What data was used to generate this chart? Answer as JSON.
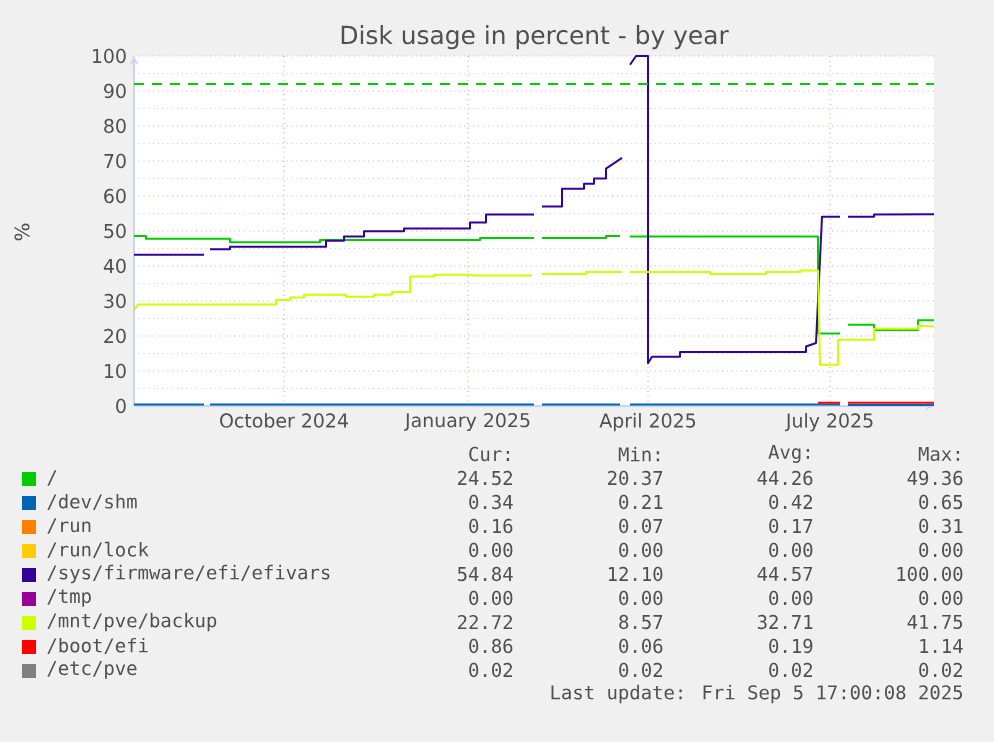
{
  "chart_data": {
    "type": "line",
    "title": "Disk usage in percent - by year",
    "ylabel": "%",
    "xlim": [
      "2024-08-01",
      "2025-09-05"
    ],
    "xticks": [
      {
        "value": "2024-10-15",
        "label": "October 2024"
      },
      {
        "value": "2025-01-15",
        "label": "January 2025"
      },
      {
        "value": "2025-04-15",
        "label": "April 2025"
      },
      {
        "value": "2025-07-15",
        "label": "July 2025"
      }
    ],
    "ylim": [
      0,
      100
    ],
    "yticks": [
      0,
      10,
      20,
      30,
      40,
      50,
      60,
      70,
      80,
      90,
      100
    ],
    "grid": true,
    "legend": "bottom",
    "marker": "none",
    "ref_lines": [
      {
        "axis": "y",
        "value": 92,
        "color": "#00cc00",
        "line_style": "dashed"
      }
    ],
    "series": [
      {
        "name": "/",
        "color": "#00cc00",
        "x": [
          "2024-08-01",
          "2024-08-07",
          "2024-08-07",
          "2024-09-18",
          "2024-09-18",
          "2024-11-02",
          "2024-11-02",
          "2025-01-21",
          "2025-01-21",
          "2025-02-17",
          "2025-02-19",
          "2025-02-21",
          "2025-03-25",
          "2025-03-25",
          "2025-04-01",
          "2025-04-04",
          "2025-04-06",
          "2025-07-09",
          "2025-07-09",
          "2025-07-20",
          "2025-07-22",
          "2025-07-24",
          "2025-08-06",
          "2025-08-06",
          "2025-08-28",
          "2025-08-28",
          "2025-09-05"
        ],
        "values": [
          48.6,
          48.6,
          47.8,
          47.8,
          46.8,
          46.8,
          47.4,
          47.4,
          48.0,
          48.0,
          null,
          48.0,
          48.0,
          48.6,
          48.6,
          null,
          48.4,
          48.4,
          20.7,
          20.7,
          null,
          23.2,
          23.2,
          21.7,
          21.7,
          24.5,
          24.5
        ]
      },
      {
        "name": "/dev/shm",
        "color": "#0066b3",
        "x": [
          "2024-08-01",
          "2024-09-05",
          "2024-09-06",
          "2024-09-08",
          "2025-02-17",
          "2025-02-19",
          "2025-02-21",
          "2025-04-01",
          "2025-04-04",
          "2025-04-06",
          "2025-07-20",
          "2025-07-22",
          "2025-07-24",
          "2025-09-05"
        ],
        "values": [
          0.4,
          0.4,
          null,
          0.4,
          0.4,
          null,
          0.4,
          0.4,
          null,
          0.4,
          0.4,
          null,
          0.3,
          0.3
        ]
      },
      {
        "name": "/run",
        "color": "#ff8000"
      },
      {
        "name": "/run/lock",
        "color": "#ffcc00"
      },
      {
        "name": "/sys/firmware/efi/efivars",
        "color": "#330099",
        "x": [
          "2024-08-01",
          "2024-09-05",
          "2024-09-06",
          "2024-09-08",
          "2024-09-18",
          "2024-09-18",
          "2024-11-05",
          "2024-11-05",
          "2024-11-14",
          "2024-11-14",
          "2024-11-24",
          "2024-11-24",
          "2024-12-14",
          "2024-12-14",
          "2025-01-16",
          "2025-01-16",
          "2025-01-24",
          "2025-01-24",
          "2025-02-17",
          "2025-02-19",
          "2025-02-21",
          "2025-03-03",
          "2025-03-03",
          "2025-03-14",
          "2025-03-14",
          "2025-03-19",
          "2025-03-19",
          "2025-03-25",
          "2025-03-25",
          "2025-04-02",
          "2025-04-04",
          "2025-04-06",
          "2025-04-09",
          "2025-04-15",
          "2025-04-15",
          "2025-04-17",
          "2025-05-01",
          "2025-05-01",
          "2025-07-03",
          "2025-07-03",
          "2025-07-08",
          "2025-07-11",
          "2025-07-20",
          "2025-07-22",
          "2025-07-24",
          "2025-08-06",
          "2025-08-06",
          "2025-09-05"
        ],
        "values": [
          43.2,
          43.2,
          null,
          44.8,
          44.8,
          45.5,
          45.5,
          47.2,
          47.2,
          48.4,
          48.4,
          49.9,
          49.9,
          50.7,
          50.7,
          52.4,
          52.4,
          54.7,
          54.7,
          null,
          57.0,
          57.0,
          62.1,
          62.1,
          63.5,
          63.5,
          65.0,
          65.0,
          67.8,
          70.9,
          null,
          97.5,
          100,
          100,
          12.2,
          14.1,
          14.1,
          15.4,
          15.4,
          17.0,
          18.0,
          54.1,
          54.1,
          null,
          54.1,
          54.1,
          54.7,
          54.8
        ]
      },
      {
        "name": "/tmp",
        "color": "#990099"
      },
      {
        "name": "/mnt/pve/backup",
        "color": "#ccff00",
        "x": [
          "2024-08-01",
          "2024-08-03",
          "2024-08-03",
          "2024-10-11",
          "2024-10-11",
          "2024-10-18",
          "2024-10-18",
          "2024-10-25",
          "2024-10-25",
          "2024-11-15",
          "2024-11-15",
          "2024-11-29",
          "2024-11-29",
          "2024-12-08",
          "2024-12-08",
          "2024-12-17",
          "2024-12-17",
          "2024-12-29",
          "2024-12-29",
          "2025-01-17",
          "2025-01-17",
          "2025-02-16",
          "2025-02-19",
          "2025-02-21",
          "2025-03-15",
          "2025-03-15",
          "2025-04-02",
          "2025-04-04",
          "2025-04-06",
          "2025-05-16",
          "2025-05-16",
          "2025-06-13",
          "2025-06-13",
          "2025-06-30",
          "2025-06-30",
          "2025-07-09",
          "2025-07-10",
          "2025-07-19",
          "2025-07-19",
          "2025-08-06",
          "2025-08-06",
          "2025-08-28",
          "2025-08-28",
          "2025-09-05"
        ],
        "values": [
          27.4,
          29.0,
          29.0,
          29.0,
          30.3,
          30.3,
          31.0,
          31.0,
          31.8,
          31.8,
          31.2,
          31.2,
          31.8,
          31.8,
          32.6,
          32.6,
          37.0,
          37.0,
          37.5,
          37.5,
          37.3,
          37.3,
          null,
          37.7,
          37.7,
          38.3,
          38.3,
          null,
          38.3,
          38.3,
          37.7,
          37.7,
          38.3,
          38.3,
          38.7,
          38.7,
          11.8,
          11.8,
          18.9,
          18.9,
          22.1,
          22.1,
          22.9,
          22.7
        ]
      },
      {
        "name": "/boot/efi",
        "color": "#ff0000",
        "x": [
          "2025-07-09",
          "2025-07-20",
          "2025-07-22",
          "2025-07-24",
          "2025-09-05"
        ],
        "values": [
          0.9,
          0.9,
          null,
          0.9,
          0.9
        ]
      },
      {
        "name": "/etc/pve",
        "color": "#808080"
      }
    ],
    "annotations": [
      "Cur:",
      "Min:",
      "Avg:",
      "Max:",
      "24.52",
      "20.37",
      "44.26",
      "49.36",
      "0.34",
      "0.21",
      "0.42",
      "0.65",
      "0.16",
      "0.07",
      "0.17",
      "0.31",
      "0.00",
      "0.00",
      "0.00",
      "0.00",
      "54.84",
      "12.10",
      "44.57",
      "100.00",
      "0.00",
      "0.00",
      "0.00",
      "0.00",
      "22.72",
      "8.57",
      "32.71",
      "41.75",
      "0.86",
      "0.06",
      "0.19",
      "1.14",
      "0.02",
      "0.02",
      "0.02",
      "0.02",
      "Last update: Fri Sep  5 17:00:08 2025"
    ]
  }
}
